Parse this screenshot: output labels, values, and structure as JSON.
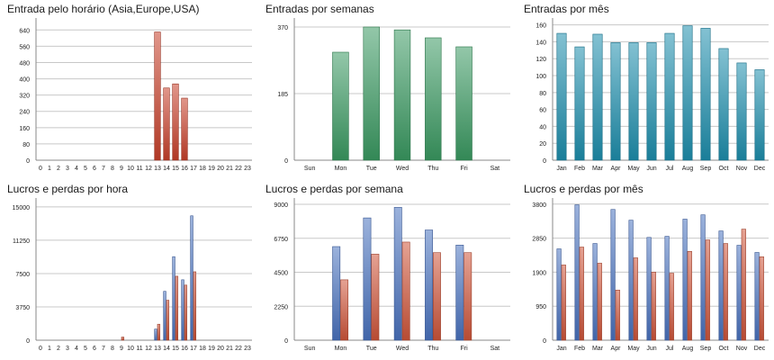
{
  "chart_data": [
    {
      "id": "entrada-horario",
      "type": "bar",
      "title": "Entrada pelo horário (Asia,Europe,USA)",
      "categories": [
        "0",
        "1",
        "2",
        "3",
        "4",
        "5",
        "6",
        "7",
        "8",
        "9",
        "10",
        "11",
        "12",
        "13",
        "14",
        "15",
        "16",
        "17",
        "18",
        "19",
        "20",
        "21",
        "22",
        "23"
      ],
      "series": [
        {
          "values": [
            0,
            0,
            0,
            0,
            0,
            0,
            0,
            0,
            0,
            0,
            0,
            0,
            0,
            630,
            355,
            375,
            305,
            0,
            0,
            0,
            0,
            0,
            0,
            0
          ],
          "color": "#c8402a"
        }
      ],
      "yticks": [
        "0",
        "80",
        "160",
        "240",
        "320",
        "400",
        "480",
        "560",
        "640"
      ],
      "ylim": [
        0,
        690
      ],
      "grid": true
    },
    {
      "id": "entradas-semanas",
      "type": "bar",
      "title": "Entradas por semanas",
      "categories": [
        "Sun",
        "Mon",
        "Tue",
        "Wed",
        "Thu",
        "Fri",
        "Sat"
      ],
      "series": [
        {
          "values": [
            0,
            300,
            370,
            362,
            340,
            315,
            0
          ],
          "color": "#3a9a62"
        }
      ],
      "yticks": [
        "0",
        "185",
        "370"
      ],
      "ylim": [
        0,
        390
      ],
      "grid": true
    },
    {
      "id": "entradas-mes",
      "type": "bar",
      "title": "Entradas por mês",
      "categories": [
        "Jan",
        "Feb",
        "Mar",
        "Apr",
        "May",
        "Jun",
        "Jul",
        "Aug",
        "Sep",
        "Oct",
        "Nov",
        "Dec"
      ],
      "series": [
        {
          "values": [
            150,
            134,
            149,
            139,
            139,
            139,
            150,
            159,
            156,
            132,
            115,
            107
          ],
          "color": "#1d8fae"
        }
      ],
      "yticks": [
        "0",
        "20",
        "40",
        "60",
        "80",
        "100",
        "120",
        "140",
        "160"
      ],
      "ylim": [
        0,
        166
      ],
      "grid": true
    },
    {
      "id": "lucros-hora",
      "type": "bar",
      "title": "Lucros e perdas por hora",
      "categories": [
        "0",
        "1",
        "2",
        "3",
        "4",
        "5",
        "6",
        "7",
        "8",
        "9",
        "10",
        "11",
        "12",
        "13",
        "14",
        "15",
        "16",
        "17",
        "18",
        "19",
        "20",
        "21",
        "22",
        "23"
      ],
      "series": [
        {
          "values": [
            0,
            0,
            0,
            0,
            0,
            0,
            0,
            0,
            0,
            0,
            0,
            0,
            0,
            1250,
            5500,
            9400,
            6800,
            14000,
            0,
            0,
            0,
            0,
            0,
            0
          ],
          "color": "#4a73c0"
        },
        {
          "values": [
            0,
            0,
            0,
            0,
            0,
            0,
            0,
            0,
            0,
            350,
            0,
            0,
            0,
            1800,
            4500,
            7200,
            6200,
            7700,
            0,
            0,
            0,
            0,
            0,
            0
          ],
          "color": "#d0553a"
        }
      ],
      "yticks": [
        "0",
        "3750",
        "7500",
        "11250",
        "15000"
      ],
      "ylim": [
        0,
        15800
      ],
      "grid": true
    },
    {
      "id": "lucros-semana",
      "type": "bar",
      "title": "Lucros e perdas por semana",
      "categories": [
        "Sun",
        "Mon",
        "Tue",
        "Wed",
        "Thu",
        "Fri",
        "Sat"
      ],
      "series": [
        {
          "values": [
            0,
            6200,
            8100,
            8800,
            7300,
            6300,
            0
          ],
          "color": "#4a73c0"
        },
        {
          "values": [
            0,
            4000,
            5700,
            6500,
            5800,
            5800,
            0
          ],
          "color": "#d0553a"
        }
      ],
      "yticks": [
        "0",
        "2250",
        "4500",
        "6750",
        "9000"
      ],
      "ylim": [
        0,
        9300
      ],
      "grid": true
    },
    {
      "id": "lucros-mes",
      "type": "bar",
      "title": "Lucros e perdas por mês",
      "categories": [
        "Jan",
        "Feb",
        "Mar",
        "Apr",
        "May",
        "Jun",
        "Jul",
        "Aug",
        "Sep",
        "Oct",
        "Nov",
        "Dec"
      ],
      "series": [
        {
          "values": [
            2550,
            3780,
            2700,
            3650,
            3350,
            2870,
            2900,
            3380,
            3500,
            3050,
            2650,
            2450
          ],
          "color": "#4a73c0"
        },
        {
          "values": [
            2100,
            2600,
            2150,
            1400,
            2300,
            1900,
            1870,
            2480,
            2800,
            2700,
            3100,
            2330
          ],
          "color": "#d0553a"
        }
      ],
      "yticks": [
        "0",
        "950",
        "1900",
        "2850",
        "3800"
      ],
      "ylim": [
        0,
        3920
      ],
      "grid": true
    }
  ]
}
